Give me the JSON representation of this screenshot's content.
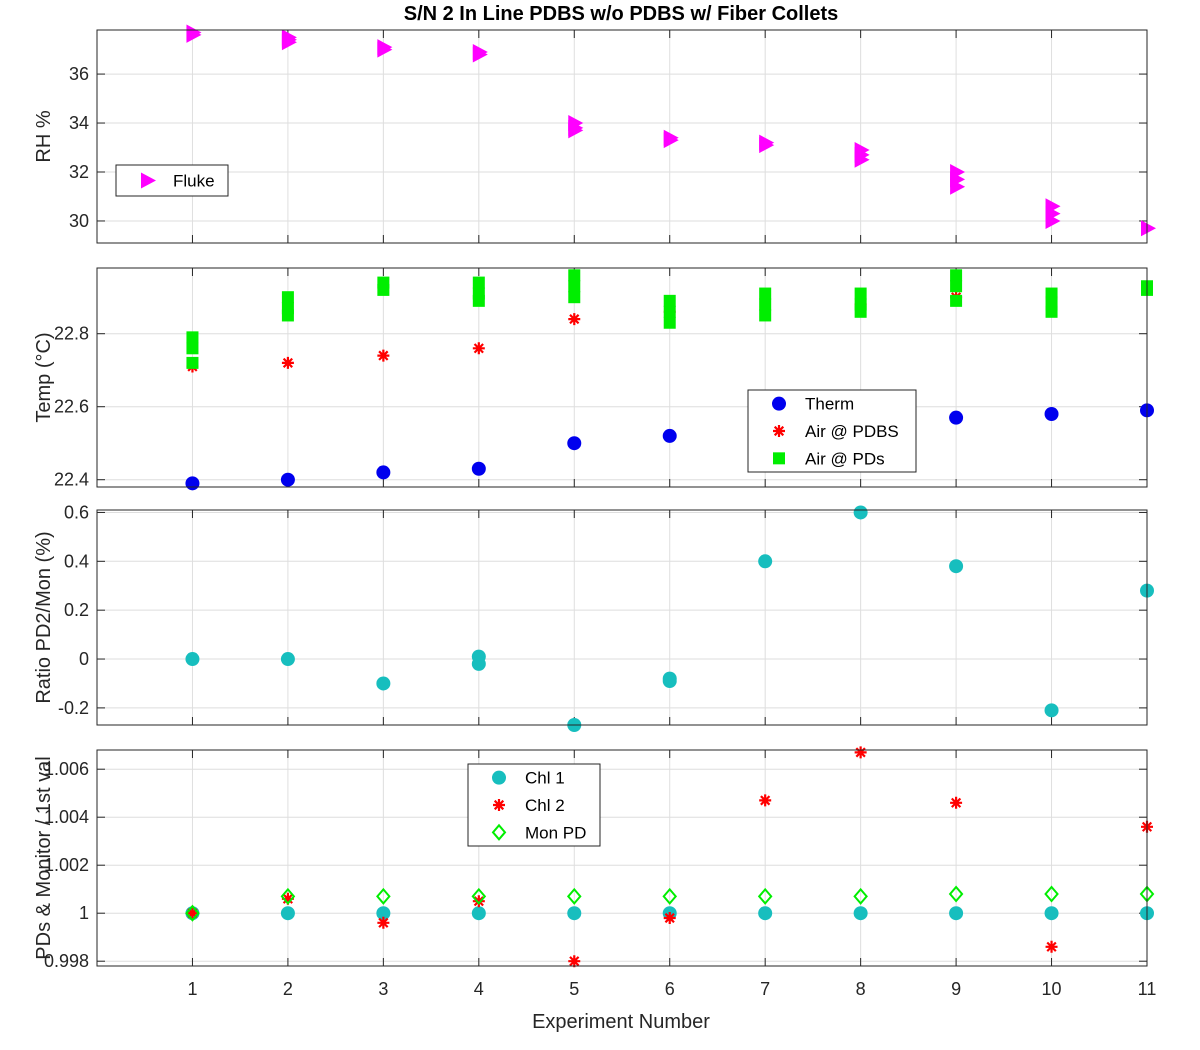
{
  "title": "S/N 2 In Line PDBS w/o PDBS w/ Fiber Collets",
  "x_axis": {
    "label": "Experiment Number",
    "ticks": [
      "1",
      "2",
      "3",
      "4",
      "5",
      "6",
      "7",
      "8",
      "9",
      "10",
      "11"
    ],
    "range": [
      0,
      11
    ]
  },
  "chart_data": [
    {
      "type": "scatter",
      "ylabel": "RH %",
      "xlim": [
        0,
        11
      ],
      "ylim": [
        29.1,
        37.8
      ],
      "yticks": [
        30,
        32,
        34,
        36
      ],
      "ytick_labels": [
        "30",
        "32",
        "34",
        "36"
      ],
      "grid": true,
      "legend_placement": "middle-left",
      "series": [
        {
          "name": "Fluke",
          "color": "#ff00ff",
          "marker": "triangle-right",
          "points": [
            [
              1,
              37.7
            ],
            [
              1,
              37.6
            ],
            [
              2,
              37.5
            ],
            [
              2,
              37.4
            ],
            [
              2,
              37.3
            ],
            [
              3,
              37.1
            ],
            [
              3,
              37.0
            ],
            [
              4,
              36.9
            ],
            [
              4,
              36.8
            ],
            [
              5,
              34.0
            ],
            [
              5,
              33.8
            ],
            [
              5,
              33.7
            ],
            [
              6,
              33.4
            ],
            [
              6,
              33.3
            ],
            [
              7,
              33.2
            ],
            [
              7,
              33.1
            ],
            [
              8,
              32.9
            ],
            [
              8,
              32.7
            ],
            [
              8,
              32.5
            ],
            [
              9,
              32.0
            ],
            [
              9,
              31.7
            ],
            [
              9,
              31.4
            ],
            [
              10,
              30.6
            ],
            [
              10,
              30.3
            ],
            [
              10,
              30.0
            ],
            [
              11,
              29.7
            ]
          ]
        }
      ]
    },
    {
      "type": "scatter",
      "ylabel": "Temp (°C)",
      "xlim": [
        0,
        11
      ],
      "ylim": [
        22.38,
        22.98
      ],
      "yticks": [
        22.4,
        22.6,
        22.8
      ],
      "ytick_labels": [
        "22.4",
        "22.6",
        "22.8"
      ],
      "grid": true,
      "legend_placement": "lower-right",
      "series": [
        {
          "name": "Therm",
          "color": "#0000ee",
          "marker": "circle",
          "points": [
            [
              1,
              22.39
            ],
            [
              2,
              22.4
            ],
            [
              3,
              22.42
            ],
            [
              4,
              22.43
            ],
            [
              5,
              22.5
            ],
            [
              6,
              22.52
            ],
            [
              9,
              22.57
            ],
            [
              10,
              22.58
            ],
            [
              11,
              22.59
            ]
          ]
        },
        {
          "name": "Air @ PDBS",
          "color": "#ff0000",
          "marker": "asterisk",
          "points": [
            [
              1,
              22.71
            ],
            [
              2,
              22.72
            ],
            [
              3,
              22.74
            ],
            [
              4,
              22.76
            ],
            [
              5,
              22.84
            ],
            [
              6,
              22.86
            ],
            [
              8,
              22.88
            ],
            [
              9,
              22.9
            ],
            [
              10,
              22.9
            ]
          ]
        },
        {
          "name": "Air @ PDs",
          "color": "#00ee00",
          "marker": "square",
          "points": [
            [
              1,
              22.79
            ],
            [
              1,
              22.76
            ],
            [
              1,
              22.72
            ],
            [
              2,
              22.9
            ],
            [
              2,
              22.87
            ],
            [
              2,
              22.85
            ],
            [
              3,
              22.94
            ],
            [
              3,
              22.92
            ],
            [
              4,
              22.94
            ],
            [
              4,
              22.91
            ],
            [
              4,
              22.89
            ],
            [
              5,
              22.96
            ],
            [
              5,
              22.93
            ],
            [
              5,
              22.9
            ],
            [
              6,
              22.89
            ],
            [
              6,
              22.86
            ],
            [
              6,
              22.83
            ],
            [
              7,
              22.91
            ],
            [
              7,
              22.88
            ],
            [
              7,
              22.85
            ],
            [
              8,
              22.91
            ],
            [
              8,
              22.88
            ],
            [
              8,
              22.86
            ],
            [
              9,
              22.96
            ],
            [
              9,
              22.93
            ],
            [
              9,
              22.89
            ],
            [
              10,
              22.91
            ],
            [
              10,
              22.88
            ],
            [
              10,
              22.86
            ],
            [
              11,
              22.93
            ],
            [
              11,
              22.92
            ]
          ]
        }
      ]
    },
    {
      "type": "scatter",
      "ylabel": "Ratio PD2/Mon (%)",
      "xlim": [
        0,
        11
      ],
      "ylim": [
        -0.27,
        0.61
      ],
      "yticks": [
        -0.2,
        0,
        0.2,
        0.4,
        0.6
      ],
      "ytick_labels": [
        "-0.2",
        "0",
        "0.2",
        "0.4",
        "0.6"
      ],
      "grid": true,
      "series": [
        {
          "name": "",
          "color": "#17bebe",
          "marker": "circle",
          "points": [
            [
              1,
              0.0
            ],
            [
              2,
              0.0
            ],
            [
              3,
              -0.1
            ],
            [
              4,
              0.01
            ],
            [
              4,
              -0.02
            ],
            [
              5,
              -0.27
            ],
            [
              6,
              -0.08
            ],
            [
              6,
              -0.09
            ],
            [
              7,
              0.4
            ],
            [
              8,
              0.6
            ],
            [
              9,
              0.38
            ],
            [
              10,
              -0.21
            ],
            [
              11,
              0.28
            ]
          ]
        }
      ]
    },
    {
      "type": "scatter",
      "ylabel": "PDs & Monitor / 1st val",
      "xlim": [
        0,
        11
      ],
      "ylim": [
        0.9978,
        1.0068
      ],
      "yticks": [
        0.998,
        1,
        1.002,
        1.004,
        1.006
      ],
      "ytick_labels": [
        "0.998",
        "1",
        "1.002",
        "1.004",
        "1.006"
      ],
      "grid": true,
      "legend_placement": "top-center",
      "series": [
        {
          "name": "Chl 1",
          "color": "#17bebe",
          "marker": "circle",
          "points": [
            [
              1,
              1.0
            ],
            [
              2,
              1.0
            ],
            [
              3,
              1.0
            ],
            [
              4,
              1.0
            ],
            [
              5,
              1.0
            ],
            [
              6,
              1.0
            ],
            [
              7,
              1.0
            ],
            [
              8,
              1.0
            ],
            [
              9,
              1.0
            ],
            [
              10,
              1.0
            ],
            [
              11,
              1.0
            ]
          ]
        },
        {
          "name": "Chl 2",
          "color": "#ff0000",
          "marker": "asterisk",
          "points": [
            [
              1,
              1.0
            ],
            [
              2,
              1.0006
            ],
            [
              3,
              0.9996
            ],
            [
              4,
              1.0005
            ],
            [
              5,
              0.998
            ],
            [
              6,
              0.9998
            ],
            [
              7,
              1.0047
            ],
            [
              8,
              1.0067
            ],
            [
              9,
              1.0046
            ],
            [
              10,
              0.9986
            ],
            [
              11,
              1.0036
            ]
          ]
        },
        {
          "name": "Mon PD",
          "color": "#00ee00",
          "marker": "diamond",
          "points": [
            [
              1,
              1.0
            ],
            [
              2,
              1.0007
            ],
            [
              3,
              1.0007
            ],
            [
              4,
              1.0007
            ],
            [
              5,
              1.0007
            ],
            [
              6,
              1.0007
            ],
            [
              7,
              1.0007
            ],
            [
              8,
              1.0007
            ],
            [
              9,
              1.0008
            ],
            [
              10,
              1.0008
            ],
            [
              11,
              1.0008
            ]
          ]
        }
      ]
    }
  ]
}
